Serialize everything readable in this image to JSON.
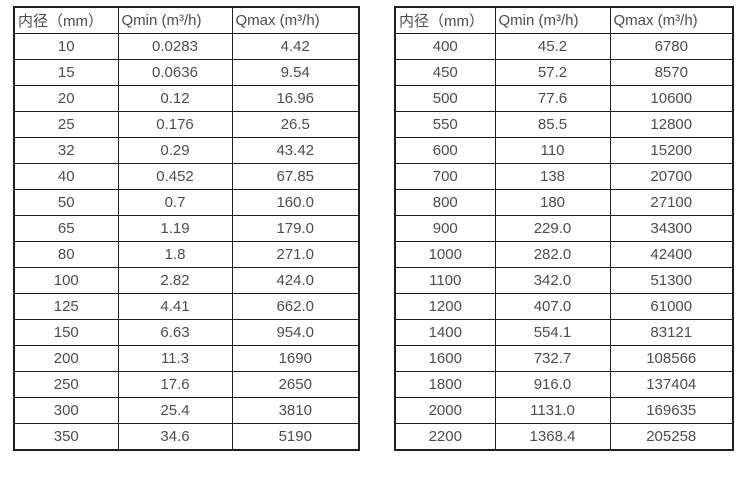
{
  "page": {
    "background": "#ffffff",
    "text_color": "#4d4d4d",
    "border_color": "#1f1f1f"
  },
  "tables": [
    {
      "name": "flow-rate-table-small-diameters",
      "headers": [
        "内径（mm）",
        "Qmin (m³/h)",
        "Qmax (m³/h)"
      ],
      "rows": [
        [
          "10",
          "0.0283",
          "4.42"
        ],
        [
          "15",
          "0.0636",
          "9.54"
        ],
        [
          "20",
          "0.12",
          "16.96"
        ],
        [
          "25",
          "0.176",
          "26.5"
        ],
        [
          "32",
          "0.29",
          "43.42"
        ],
        [
          "40",
          "0.452",
          "67.85"
        ],
        [
          "50",
          "0.7",
          "160.0"
        ],
        [
          "65",
          "1.19",
          "179.0"
        ],
        [
          "80",
          "1.8",
          "271.0"
        ],
        [
          "100",
          "2.82",
          "424.0"
        ],
        [
          "125",
          "4.41",
          "662.0"
        ],
        [
          "150",
          "6.63",
          "954.0"
        ],
        [
          "200",
          "11.3",
          "1690"
        ],
        [
          "250",
          "17.6",
          "2650"
        ],
        [
          "300",
          "25.4",
          "3810"
        ],
        [
          "350",
          "34.6",
          "5190"
        ]
      ]
    },
    {
      "name": "flow-rate-table-large-diameters",
      "headers": [
        "内径（mm）",
        "Qmin (m³/h)",
        "Qmax (m³/h)"
      ],
      "rows": [
        [
          "400",
          "45.2",
          "6780"
        ],
        [
          "450",
          "57.2",
          "8570"
        ],
        [
          "500",
          "77.6",
          "10600"
        ],
        [
          "550",
          "85.5",
          "12800"
        ],
        [
          "600",
          "110",
          "15200"
        ],
        [
          "700",
          "138",
          "20700"
        ],
        [
          "800",
          "180",
          "27100"
        ],
        [
          "900",
          "229.0",
          "34300"
        ],
        [
          "1000",
          "282.0",
          "42400"
        ],
        [
          "1100",
          "342.0",
          "51300"
        ],
        [
          "1200",
          "407.0",
          "61000"
        ],
        [
          "1400",
          "554.1",
          "83121"
        ],
        [
          "1600",
          "732.7",
          "108566"
        ],
        [
          "1800",
          "916.0",
          "137404"
        ],
        [
          "2000",
          "1131.0",
          "169635"
        ],
        [
          "2200",
          "1368.4",
          "205258"
        ]
      ]
    }
  ]
}
